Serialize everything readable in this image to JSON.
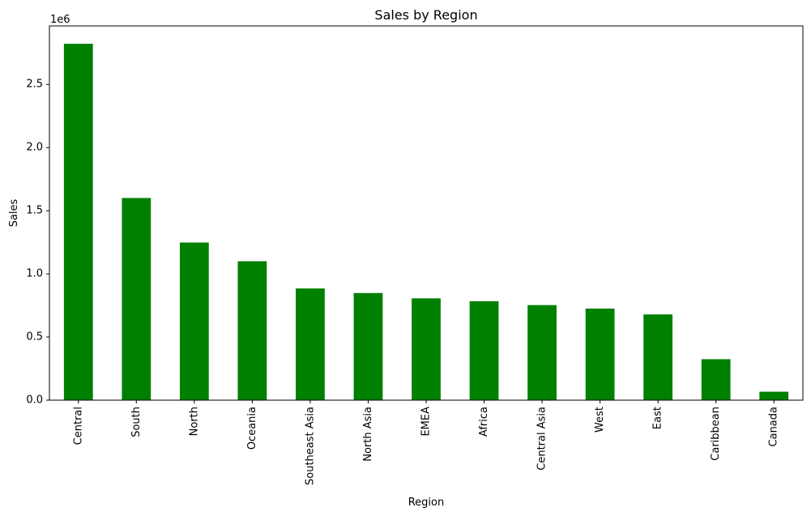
{
  "chart_data": {
    "type": "bar",
    "title": "Sales by Region",
    "xlabel": "Region",
    "ylabel": "Sales",
    "y_offset_label": "1e6",
    "categories": [
      "Central",
      "South",
      "North",
      "Oceania",
      "Southeast Asia",
      "North Asia",
      "EMEA",
      "Africa",
      "Central Asia",
      "West",
      "East",
      "Caribbean",
      "Canada"
    ],
    "values": [
      2822302,
      1600907,
      1248166,
      1100185,
      884423,
      848310,
      806161,
      783773,
      752827,
      725458,
      678781,
      324281,
      66928
    ],
    "bar_color": "#008000",
    "ylim": [
      0,
      2963417
    ],
    "yticks": [
      0,
      500000,
      1000000,
      1500000,
      2000000,
      2500000
    ],
    "ytick_labels": [
      "0.0",
      "0.5",
      "1.0",
      "1.5",
      "2.0",
      "2.5"
    ],
    "grid": false,
    "legend": "none"
  }
}
